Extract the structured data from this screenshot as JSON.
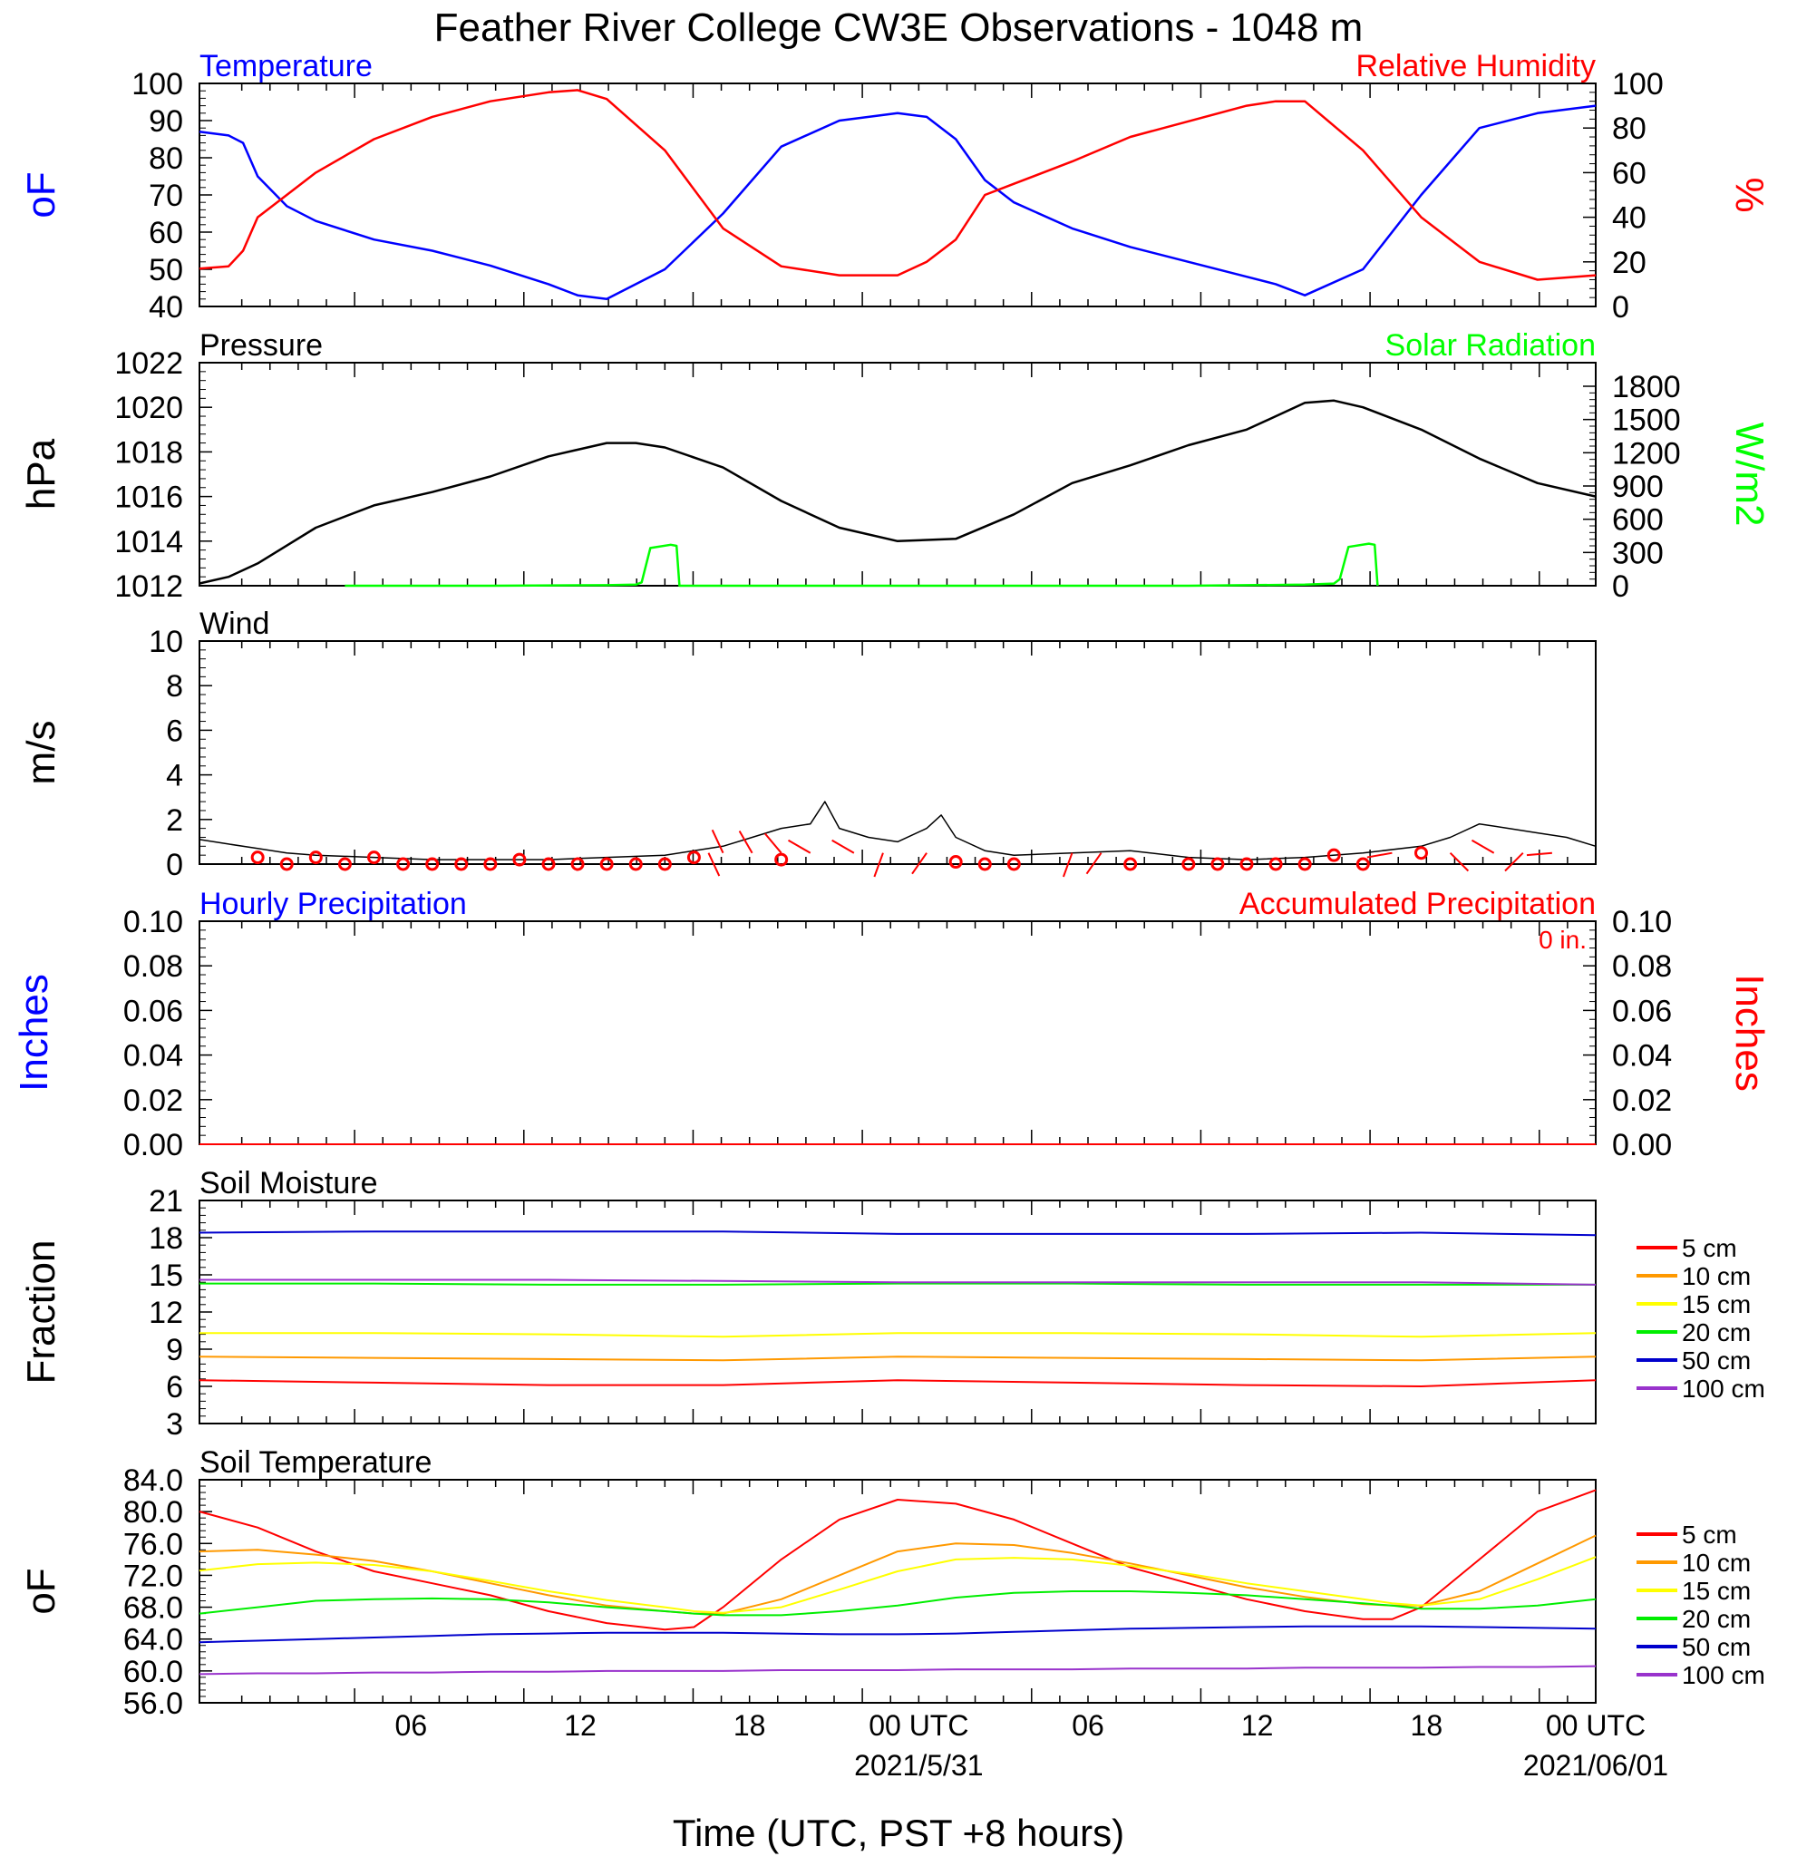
{
  "title": "Feather River College CW3E Observations - 1048 m",
  "x_axis": {
    "label": "Time (UTC, PST +8 hours)",
    "ticks": [
      "06",
      "12",
      "18",
      "00 UTC",
      "06",
      "12",
      "18",
      "00 UTC"
    ],
    "dates": [
      "2021/5/31",
      "2021/06/01"
    ]
  },
  "colors": {
    "temperature": "#0000ff",
    "humidity": "#ff0000",
    "pressure": "#000000",
    "solar": "#00ff00",
    "wind_speed": "#000000",
    "wind_barb": "#ff0000",
    "precip_hourly": "#0000ff",
    "precip_accum": "#ff0000",
    "depth_5cm": "#ff0000",
    "depth_10cm": "#ff9900",
    "depth_15cm": "#ffff00",
    "depth_20cm": "#00ee00",
    "depth_50cm": "#0000cc",
    "depth_100cm": "#9933cc"
  },
  "chart_data": [
    {
      "type": "line",
      "title_left": "Temperature",
      "title_right": "Relative Humidity",
      "ylabel_left": "oF",
      "ylabel_right": "%",
      "ylim_left": [
        40,
        100
      ],
      "ylim_right": [
        0,
        100
      ],
      "yticks_left": [
        "100",
        "90",
        "80",
        "70",
        "60",
        "50",
        "40"
      ],
      "yticks_right": [
        "100",
        "80",
        "60",
        "40",
        "20",
        "0"
      ],
      "x_hours": [
        0,
        1,
        1.5,
        2,
        3,
        4,
        6,
        8,
        10,
        12,
        13,
        14,
        16,
        18,
        20,
        22,
        24,
        25,
        26,
        27,
        28,
        30,
        32,
        34,
        36,
        37,
        38,
        40,
        42,
        44,
        46,
        48
      ],
      "series": [
        {
          "name": "Temperature (oF)",
          "axis": "left",
          "values": [
            87,
            86,
            84,
            75,
            67,
            63,
            58,
            55,
            51,
            46,
            43,
            42,
            50,
            65,
            83,
            90,
            92,
            91,
            85,
            74,
            68,
            61,
            56,
            52,
            48,
            46,
            43,
            50,
            70,
            88,
            92,
            94
          ]
        },
        {
          "name": "Relative Humidity (%)",
          "axis": "right",
          "values": [
            17,
            18,
            25,
            40,
            50,
            60,
            75,
            85,
            92,
            96,
            97,
            93,
            70,
            35,
            18,
            14,
            14,
            20,
            30,
            50,
            55,
            65,
            76,
            83,
            90,
            92,
            92,
            70,
            40,
            20,
            12,
            14
          ]
        }
      ]
    },
    {
      "type": "line",
      "title_left": "Pressure",
      "title_right": "Solar Radiation",
      "ylabel_left": "hPa",
      "ylabel_right": "W/m2",
      "ylim_left": [
        1012,
        1022
      ],
      "ylim_right": [
        0,
        2000
      ],
      "yticks_left": [
        "1022",
        "1020",
        "1018",
        "1016",
        "1014",
        "1012"
      ],
      "yticks_right": [
        "1800",
        "1500",
        "1200",
        "900",
        "600",
        "300",
        "0"
      ],
      "series": [
        {
          "name": "Pressure (hPa)",
          "axis": "left",
          "x_hours": [
            0,
            1,
            2,
            3,
            4,
            6,
            8,
            10,
            12,
            14,
            15,
            16,
            18,
            20,
            22,
            24,
            26,
            28,
            30,
            32,
            34,
            36,
            38,
            39,
            40,
            42,
            44,
            46,
            48
          ],
          "values": [
            1012.1,
            1012.4,
            1013.0,
            1013.8,
            1014.6,
            1015.6,
            1016.2,
            1016.9,
            1017.8,
            1018.4,
            1018.4,
            1018.2,
            1017.3,
            1015.8,
            1014.6,
            1014.0,
            1014.1,
            1015.2,
            1016.6,
            1017.4,
            1018.3,
            1019.0,
            1020.2,
            1020.3,
            1020.0,
            1019.0,
            1017.7,
            1016.6,
            1016.0
          ]
        },
        {
          "name": "Solar Radiation (W/m2)",
          "axis": "right",
          "x_hours": [
            5,
            10,
            14,
            15,
            15.2,
            15.5,
            16.2,
            16.4,
            16.5,
            29,
            34,
            38,
            39,
            39.2,
            39.5,
            40.2,
            40.4,
            40.5
          ],
          "values": [
            0,
            0,
            5,
            10,
            30,
            340,
            370,
            360,
            0,
            0,
            0,
            10,
            20,
            60,
            350,
            380,
            370,
            0
          ]
        }
      ]
    },
    {
      "type": "line",
      "title_left": "Wind",
      "ylabel_left": "m/s",
      "ylim_left": [
        0,
        10
      ],
      "yticks_left": [
        "10",
        "8",
        "6",
        "4",
        "2",
        "0"
      ],
      "series": [
        {
          "name": "Wind speed (m/s)",
          "axis": "left",
          "x_hours": [
            0,
            1,
            2,
            3,
            4,
            6,
            8,
            10,
            12,
            14,
            16,
            17,
            18,
            19,
            20,
            21,
            21.5,
            22,
            23,
            24,
            25,
            25.5,
            26,
            27,
            28,
            30,
            32,
            34,
            36,
            38,
            40,
            42,
            43,
            44,
            45,
            46,
            47,
            48
          ],
          "values": [
            1.1,
            0.9,
            0.7,
            0.5,
            0.4,
            0.3,
            0.2,
            0.2,
            0.2,
            0.3,
            0.4,
            0.6,
            0.8,
            1.2,
            1.6,
            1.8,
            2.8,
            1.6,
            1.2,
            1.0,
            1.6,
            2.2,
            1.2,
            0.6,
            0.4,
            0.5,
            0.6,
            0.3,
            0.2,
            0.3,
            0.5,
            0.8,
            1.2,
            1.8,
            1.6,
            1.4,
            1.2,
            0.8
          ]
        }
      ],
      "barbs": {
        "calm_hours": [
          2,
          3,
          4,
          5,
          6,
          7,
          8,
          9,
          10,
          11,
          12,
          13,
          14,
          15,
          16,
          17,
          20,
          26,
          27,
          28,
          32,
          34,
          35,
          36,
          37,
          38,
          39,
          40,
          42
        ],
        "calm_values": [
          0.3,
          0,
          0.3,
          0,
          0.3,
          0,
          0,
          0,
          0,
          0.2,
          0,
          0,
          0,
          0,
          0,
          0.3,
          0.2,
          0.1,
          0,
          0,
          0,
          0,
          0,
          0,
          0,
          0,
          0.4,
          0,
          0.5
        ],
        "stick_hours": [
          17.5,
          18,
          19,
          20,
          21,
          22.5,
          23.5,
          25,
          30,
          31,
          41,
          43,
          44.5,
          45.5,
          46.5
        ],
        "stick_angles": [
          155,
          335,
          330,
          320,
          300,
          300,
          200,
          215,
          200,
          215,
          260,
          135,
          300,
          225,
          265
        ]
      }
    },
    {
      "type": "bar",
      "title_left": "Hourly Precipitation",
      "title_right": "Accumulated Precipitation",
      "accum_label": "0 in.",
      "ylabel_left": "Inches",
      "ylabel_right": "Inches",
      "ylim_left": [
        0,
        0.1
      ],
      "ylim_right": [
        0,
        0.1
      ],
      "yticks_left": [
        "0.10",
        "0.08",
        "0.06",
        "0.04",
        "0.02",
        "0.00"
      ],
      "yticks_right": [
        "0.10",
        "0.08",
        "0.06",
        "0.04",
        "0.02",
        "0.00"
      ],
      "series": [
        {
          "name": "Hourly Precipitation",
          "axis": "left",
          "x_hours": [
            0,
            48
          ],
          "values": [
            0,
            0
          ]
        },
        {
          "name": "Accumulated Precipitation",
          "axis": "right",
          "x_hours": [
            0,
            48
          ],
          "values": [
            0,
            0
          ]
        }
      ]
    },
    {
      "type": "line",
      "title_left": "Soil Moisture",
      "ylabel_left": "Fraction",
      "ylim_left": [
        3,
        21
      ],
      "yticks_left": [
        "21",
        "18",
        "15",
        "12",
        "9",
        "6",
        "3"
      ],
      "legend": [
        "5 cm",
        "10 cm",
        "15 cm",
        "20 cm",
        "50 cm",
        "100 cm"
      ],
      "x_hours": [
        0,
        6,
        12,
        18,
        24,
        30,
        36,
        42,
        48
      ],
      "series": [
        {
          "name": "5 cm",
          "values": [
            6.5,
            6.3,
            6.1,
            6.1,
            6.5,
            6.3,
            6.1,
            6.0,
            6.5
          ]
        },
        {
          "name": "10 cm",
          "values": [
            8.4,
            8.3,
            8.2,
            8.1,
            8.4,
            8.3,
            8.2,
            8.1,
            8.4
          ]
        },
        {
          "name": "15 cm",
          "values": [
            10.3,
            10.3,
            10.2,
            10.0,
            10.3,
            10.3,
            10.2,
            10.0,
            10.3
          ]
        },
        {
          "name": "20 cm",
          "values": [
            14.3,
            14.3,
            14.2,
            14.2,
            14.3,
            14.3,
            14.2,
            14.2,
            14.2
          ]
        },
        {
          "name": "50 cm",
          "values": [
            18.4,
            18.5,
            18.5,
            18.5,
            18.3,
            18.3,
            18.3,
            18.4,
            18.2
          ]
        },
        {
          "name": "100 cm",
          "values": [
            14.6,
            14.6,
            14.6,
            14.5,
            14.4,
            14.4,
            14.4,
            14.4,
            14.2
          ]
        }
      ]
    },
    {
      "type": "line",
      "title_left": "Soil Temperature",
      "ylabel_left": "oF",
      "ylim_left": [
        56,
        84
      ],
      "yticks_left": [
        "84.0",
        "80.0",
        "76.0",
        "72.0",
        "68.0",
        "64.0",
        "60.0",
        "56.0"
      ],
      "legend": [
        "5 cm",
        "10 cm",
        "15 cm",
        "20 cm",
        "50 cm",
        "100 cm"
      ],
      "x_hours": [
        0,
        2,
        4,
        6,
        8,
        10,
        12,
        14,
        16,
        17,
        18,
        20,
        22,
        24,
        26,
        28,
        30,
        32,
        34,
        36,
        38,
        40,
        41,
        42,
        44,
        46,
        48
      ],
      "series": [
        {
          "name": "5 cm",
          "values": [
            80,
            78,
            75,
            72.5,
            71,
            69.5,
            67.5,
            66,
            65.2,
            65.5,
            68,
            74,
            79,
            81.5,
            81,
            79,
            76,
            73,
            71,
            69,
            67.5,
            66.5,
            66.5,
            68,
            74,
            80,
            82.7
          ]
        },
        {
          "name": "10 cm",
          "values": [
            75,
            75.2,
            74.6,
            73.8,
            72.5,
            71,
            69.5,
            68.2,
            67.5,
            67.2,
            67.2,
            69,
            72,
            75,
            76,
            75.8,
            74.8,
            73.5,
            72,
            70.5,
            69.3,
            68.4,
            68.2,
            68.2,
            70,
            73.5,
            77
          ]
        },
        {
          "name": "15 cm",
          "values": [
            72.6,
            73.4,
            73.6,
            73.3,
            72.5,
            71.3,
            70,
            68.9,
            68,
            67.5,
            67.3,
            68,
            70.2,
            72.5,
            74,
            74.2,
            74,
            73.2,
            72.2,
            71,
            70,
            69,
            68.5,
            68.2,
            69,
            71.5,
            74.3
          ]
        },
        {
          "name": "20 cm",
          "values": [
            67.2,
            68,
            68.8,
            69,
            69.1,
            69,
            68.6,
            68,
            67.5,
            67.2,
            67,
            67,
            67.5,
            68.2,
            69.2,
            69.8,
            70,
            70,
            69.8,
            69.5,
            69,
            68.5,
            68.2,
            67.8,
            67.8,
            68.2,
            69
          ]
        },
        {
          "name": "50 cm",
          "values": [
            63.6,
            63.8,
            64,
            64.2,
            64.4,
            64.6,
            64.7,
            64.8,
            64.8,
            64.8,
            64.8,
            64.7,
            64.6,
            64.6,
            64.7,
            64.9,
            65.1,
            65.3,
            65.4,
            65.5,
            65.6,
            65.6,
            65.6,
            65.6,
            65.5,
            65.4,
            65.3
          ]
        },
        {
          "name": "100 cm",
          "values": [
            59.6,
            59.7,
            59.7,
            59.8,
            59.8,
            59.9,
            59.9,
            60.0,
            60.0,
            60.0,
            60.0,
            60.1,
            60.1,
            60.1,
            60.2,
            60.2,
            60.2,
            60.3,
            60.3,
            60.3,
            60.4,
            60.4,
            60.4,
            60.4,
            60.5,
            60.5,
            60.6
          ]
        }
      ]
    }
  ]
}
